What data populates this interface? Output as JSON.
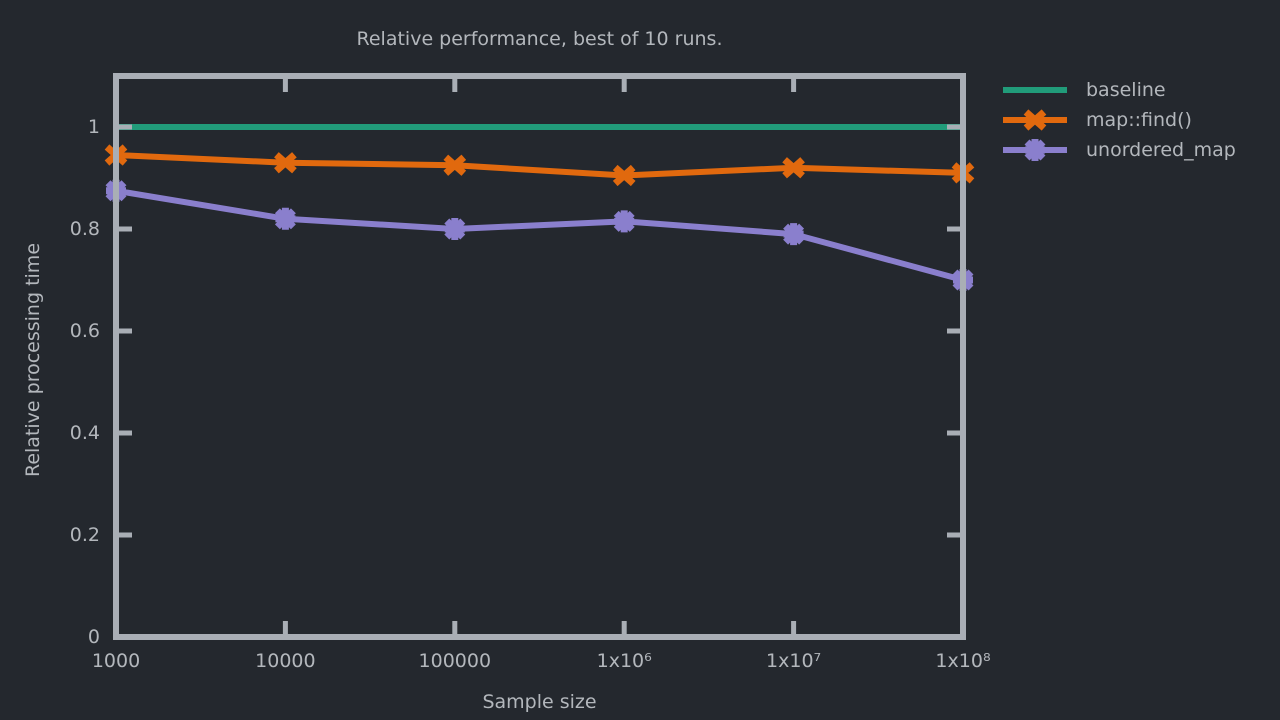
{
  "colors": {
    "background": "#24282e",
    "axis": "#a9aeb5",
    "text": "#b3b7bc"
  },
  "chart_data": {
    "type": "line",
    "title": "Relative performance, best of 10 runs.",
    "xlabel": "Sample size",
    "ylabel": "Relative processing time",
    "x_scale": "log",
    "xlim": [
      1000,
      100000000
    ],
    "ylim": [
      0,
      1.1
    ],
    "grid": false,
    "legend_position": "outside-top-right",
    "x": [
      1000,
      10000,
      100000,
      1000000,
      10000000,
      100000000
    ],
    "x_tick_labels": [
      "1000",
      "10000",
      "100000",
      "1x10⁶",
      "1x10⁷",
      "1x10⁸"
    ],
    "y_ticks": [
      0,
      0.2,
      0.4,
      0.6,
      0.8,
      1
    ],
    "y_tick_labels": [
      "0",
      "0.2",
      "0.4",
      "0.6",
      "0.8",
      "1"
    ],
    "series": [
      {
        "name": "baseline",
        "color": "#219c7a",
        "marker": "none",
        "values": [
          1.0,
          1.0,
          1.0,
          1.0,
          1.0,
          1.0
        ]
      },
      {
        "name": "map::find()",
        "color": "#e1690e",
        "marker": "cross",
        "values": [
          0.945,
          0.93,
          0.925,
          0.905,
          0.92,
          0.91
        ]
      },
      {
        "name": "unordered_map",
        "color": "#8a7fcd",
        "marker": "star",
        "values": [
          0.875,
          0.82,
          0.8,
          0.815,
          0.79,
          0.7
        ]
      }
    ]
  }
}
